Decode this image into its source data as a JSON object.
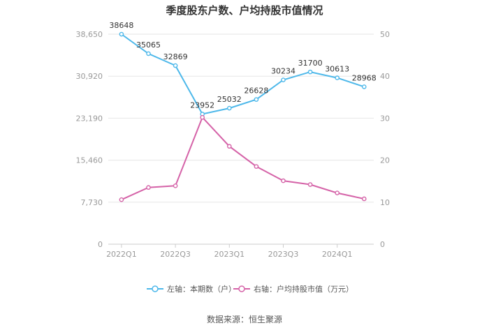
{
  "chart_data": {
    "type": "line",
    "title": "季度股东户数、户均持股市值情况",
    "categories": [
      "2022Q1",
      "2022Q2",
      "2022Q3",
      "2022Q4",
      "2023Q1",
      "2023Q2",
      "2023Q3",
      "2023Q4",
      "2024Q1",
      "2024Q2"
    ],
    "x_tick_labels": [
      "2022Q1",
      "2022Q3",
      "2023Q1",
      "2023Q3",
      "2024Q1"
    ],
    "left_axis": {
      "ticks": [
        "0",
        "7,730",
        "15,460",
        "23,190",
        "30,920",
        "38,650"
      ],
      "ylim": [
        0,
        38650
      ]
    },
    "right_axis": {
      "ticks": [
        "0",
        "10",
        "20",
        "30",
        "40",
        "50"
      ],
      "ylim": [
        0,
        50
      ]
    },
    "series": [
      {
        "name": "左轴：本期数（户）",
        "axis": "left",
        "color": "#4db8ea",
        "values": [
          38648,
          35065,
          32869,
          23952,
          25032,
          26628,
          30234,
          31700,
          30613,
          28968
        ],
        "labels": [
          "38648",
          "35065",
          "32869",
          "23952",
          "25032",
          "26628",
          "30234",
          "31700",
          "30613",
          "28968"
        ]
      },
      {
        "name": "右轴：户均持股市值（万元）",
        "axis": "right",
        "color": "#d563a8",
        "values": [
          10.6,
          13.5,
          13.9,
          30.2,
          23.3,
          18.5,
          15.1,
          14.2,
          12.2,
          10.8
        ]
      }
    ],
    "legend_position": "bottom",
    "grid": true
  },
  "source_text": "数据来源：恒生聚源"
}
